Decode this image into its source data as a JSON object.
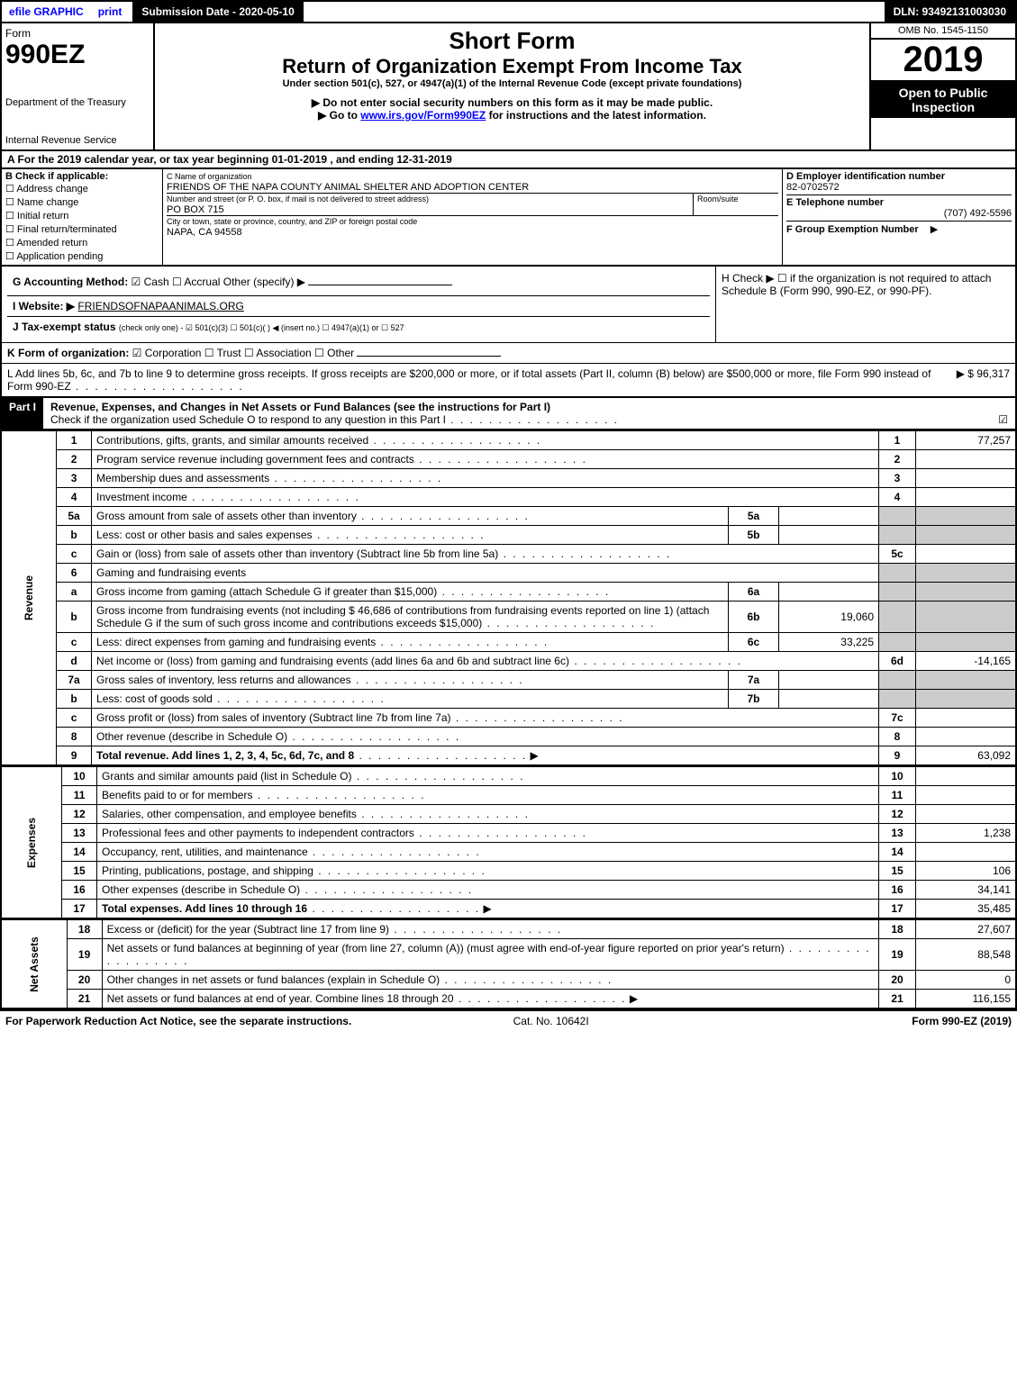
{
  "topbar": {
    "efile": "efile GRAPHIC",
    "print": "print",
    "subdate": "Submission Date - 2020-05-10",
    "dln": "DLN: 93492131003030"
  },
  "header": {
    "form": "Form",
    "num": "990EZ",
    "dept": "Department of the Treasury",
    "irs": "Internal Revenue Service",
    "sf": "Short Form",
    "rt": "Return of Organization Exempt From Income Tax",
    "us": "Under section 501(c), 527, or 4947(a)(1) of the Internal Revenue Code (except private foundations)",
    "dn": "▶ Do not enter social security numbers on this form as it may be made public.",
    "go": "▶ Go to ",
    "gourl": "www.irs.gov/Form990EZ",
    "go2": " for instructions and the latest information.",
    "omb": "OMB No. 1545-1150",
    "yr": "2019",
    "op": "Open to Public Inspection"
  },
  "A": "A For the 2019 calendar year, or tax year beginning 01-01-2019 , and ending 12-31-2019",
  "B": {
    "lbl": "B Check if applicable:",
    "c1": "Address change",
    "c2": "Name change",
    "c3": "Initial return",
    "c4": "Final return/terminated",
    "c5": "Amended return",
    "c6": "Application pending"
  },
  "C": {
    "lbl": "C Name of organization",
    "name": "FRIENDS OF THE NAPA COUNTY ANIMAL SHELTER AND ADOPTION CENTER",
    "addr_lbl": "Number and street (or P. O. box, if mail is not delivered to street address)",
    "addr": "PO BOX 715",
    "room_lbl": "Room/suite",
    "city_lbl": "City or town, state or province, country, and ZIP or foreign postal code",
    "city": "NAPA, CA  94558"
  },
  "D": {
    "lbl": "D Employer identification number",
    "val": "82-0702572"
  },
  "E": {
    "lbl": "E Telephone number",
    "val": "(707) 492-5596"
  },
  "F": {
    "lbl": "F Group Exemption Number",
    "arrow": "▶"
  },
  "G": {
    "lbl": "G Accounting Method:",
    "opts": "☑ Cash  ☐ Accrual   Other (specify) ▶"
  },
  "H": {
    "lbl": "H   Check ▶  ☐  if the organization is not required to attach Schedule B (Form 990, 990-EZ, or 990-PF)."
  },
  "I": {
    "lbl": "I Website: ▶",
    "val": "FRIENDSOFNAPAANIMALS.ORG"
  },
  "J": {
    "lbl": "J Tax-exempt status",
    "val": "(check only one) - ☑ 501(c)(3) ☐ 501(c)(  ) ◀ (insert no.) ☐ 4947(a)(1) or ☐ 527"
  },
  "K": {
    "lbl": "K Form of organization:",
    "val": "☑ Corporation   ☐ Trust   ☐ Association   ☐ Other"
  },
  "L": {
    "txt": "L Add lines 5b, 6c, and 7b to line 9 to determine gross receipts. If gross receipts are $200,000 or more, or if total assets (Part II, column (B) below) are $500,000 or more, file Form 990 instead of Form 990-EZ",
    "amt": "▶ $ 96,317"
  },
  "partI": {
    "hdr": "Part I",
    "title": "Revenue, Expenses, and Changes in Net Assets or Fund Balances (see the instructions for Part I)",
    "sub": "Check if the organization used Schedule O to respond to any question in this Part I",
    "chk": "☑"
  },
  "sides": {
    "rev": "Revenue",
    "exp": "Expenses",
    "na": "Net Assets"
  },
  "rows": [
    {
      "ln": "1",
      "desc": "Contributions, gifts, grants, and similar amounts received",
      "num": "1",
      "val": "77,257"
    },
    {
      "ln": "2",
      "desc": "Program service revenue including government fees and contracts",
      "num": "2",
      "val": ""
    },
    {
      "ln": "3",
      "desc": "Membership dues and assessments",
      "num": "3",
      "val": ""
    },
    {
      "ln": "4",
      "desc": "Investment income",
      "num": "4",
      "val": ""
    },
    {
      "ln": "5a",
      "desc": "Gross amount from sale of assets other than inventory",
      "sm": "5a",
      "smv": "",
      "shade": true
    },
    {
      "ln": "b",
      "desc": "Less: cost or other basis and sales expenses",
      "sm": "5b",
      "smv": "",
      "shade": true
    },
    {
      "ln": "c",
      "desc": "Gain or (loss) from sale of assets other than inventory (Subtract line 5b from line 5a)",
      "num": "5c",
      "val": ""
    },
    {
      "ln": "6",
      "desc": "Gaming and fundraising events",
      "shadeboth": true
    },
    {
      "ln": "a",
      "desc": "Gross income from gaming (attach Schedule G if greater than $15,000)",
      "sm": "6a",
      "smv": "",
      "shade": true
    },
    {
      "ln": "b",
      "desc": "Gross income from fundraising events (not including $  46,686        of contributions from fundraising events reported on line 1) (attach Schedule G if the sum of such gross income and contributions exceeds $15,000)",
      "sm": "6b",
      "smv": "19,060",
      "shade": true
    },
    {
      "ln": "c",
      "desc": "Less: direct expenses from gaming and fundraising events",
      "sm": "6c",
      "smv": "33,225",
      "shade": true
    },
    {
      "ln": "d",
      "desc": "Net income or (loss) from gaming and fundraising events (add lines 6a and 6b and subtract line 6c)",
      "num": "6d",
      "val": "-14,165"
    },
    {
      "ln": "7a",
      "desc": "Gross sales of inventory, less returns and allowances",
      "sm": "7a",
      "smv": "",
      "shade": true
    },
    {
      "ln": "b",
      "desc": "Less: cost of goods sold",
      "sm": "7b",
      "smv": "",
      "shade": true
    },
    {
      "ln": "c",
      "desc": "Gross profit or (loss) from sales of inventory (Subtract line 7b from line 7a)",
      "num": "7c",
      "val": ""
    },
    {
      "ln": "8",
      "desc": "Other revenue (describe in Schedule O)",
      "num": "8",
      "val": ""
    },
    {
      "ln": "9",
      "desc": "Total revenue. Add lines 1, 2, 3, 4, 5c, 6d, 7c, and 8",
      "num": "9",
      "val": "63,092",
      "bold": true,
      "arrow": true
    }
  ],
  "exprows": [
    {
      "ln": "10",
      "desc": "Grants and similar amounts paid (list in Schedule O)",
      "num": "10",
      "val": ""
    },
    {
      "ln": "11",
      "desc": "Benefits paid to or for members",
      "num": "11",
      "val": ""
    },
    {
      "ln": "12",
      "desc": "Salaries, other compensation, and employee benefits",
      "num": "12",
      "val": ""
    },
    {
      "ln": "13",
      "desc": "Professional fees and other payments to independent contractors",
      "num": "13",
      "val": "1,238"
    },
    {
      "ln": "14",
      "desc": "Occupancy, rent, utilities, and maintenance",
      "num": "14",
      "val": ""
    },
    {
      "ln": "15",
      "desc": "Printing, publications, postage, and shipping",
      "num": "15",
      "val": "106"
    },
    {
      "ln": "16",
      "desc": "Other expenses (describe in Schedule O)",
      "num": "16",
      "val": "34,141"
    },
    {
      "ln": "17",
      "desc": "Total expenses. Add lines 10 through 16",
      "num": "17",
      "val": "35,485",
      "bold": true,
      "arrow": true
    }
  ],
  "narows": [
    {
      "ln": "18",
      "desc": "Excess or (deficit) for the year (Subtract line 17 from line 9)",
      "num": "18",
      "val": "27,607"
    },
    {
      "ln": "19",
      "desc": "Net assets or fund balances at beginning of year (from line 27, column (A)) (must agree with end-of-year figure reported on prior year's return)",
      "num": "19",
      "val": "88,548"
    },
    {
      "ln": "20",
      "desc": "Other changes in net assets or fund balances (explain in Schedule O)",
      "num": "20",
      "val": "0"
    },
    {
      "ln": "21",
      "desc": "Net assets or fund balances at end of year. Combine lines 18 through 20",
      "num": "21",
      "val": "116,155",
      "arrow": true
    }
  ],
  "footer": {
    "l": "For Paperwork Reduction Act Notice, see the separate instructions.",
    "m": "Cat. No. 10642I",
    "r": "Form 990-EZ (2019)"
  }
}
